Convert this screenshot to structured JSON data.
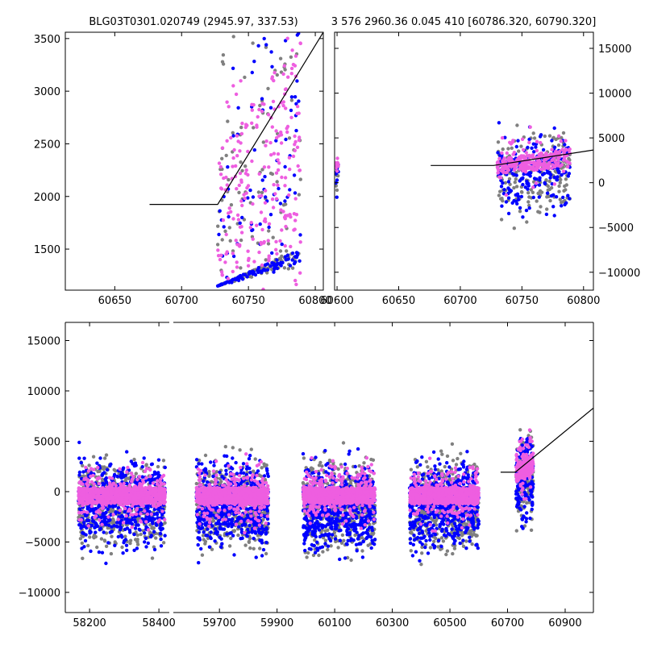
{
  "colors": {
    "background": "#ffffff",
    "grey_points": "#808080",
    "blue_points": "#0000ff",
    "pink_points": "#ee5ee0",
    "model_line": "#000000"
  },
  "chart_data": [
    {
      "id": "top-left",
      "type": "scatter",
      "title": "BLG03T0301.020749 (2945.97, 337.53)",
      "xlim": [
        60613,
        60806
      ],
      "ylim": [
        1110,
        3560
      ],
      "xticks": [
        60650,
        60700,
        60750,
        60800
      ],
      "xtick_labels": [
        "60650",
        "60700",
        "60750",
        "60800"
      ],
      "yticks": [
        1500,
        2000,
        2500,
        3000,
        3500
      ],
      "ytick_labels": [
        "1500",
        "2000",
        "2500",
        "3000",
        "3500"
      ],
      "yaxis_side": "left",
      "data_range_x": [
        60727,
        60789
      ],
      "model_line": {
        "x": [
          60676,
          60727,
          60806
        ],
        "y": [
          1925,
          1925,
          3560
        ]
      },
      "clusters": [
        {
          "x0": 60727,
          "x1": 60789,
          "yfloor": 1150,
          "ymin_start": 1150,
          "ymax_start": 2400,
          "ymin_end": 1500,
          "ymax_end": 3550
        }
      ]
    },
    {
      "id": "top-right",
      "type": "scatter",
      "title": "3 576 2960.36 0.045 410 [60786.320, 60790.320]",
      "xlim": [
        60598,
        60808
      ],
      "ylim": [
        -12000,
        16800
      ],
      "xticks": [
        60600,
        60650,
        60700,
        60750,
        60800
      ],
      "xtick_labels": [
        "60600",
        "60650",
        "60700",
        "60750",
        "60800"
      ],
      "yticks": [
        -10000,
        -5000,
        0,
        5000,
        10000,
        15000
      ],
      "ytick_labels": [
        "−10000",
        "−5000",
        "0",
        "5000",
        "10000",
        "15000"
      ],
      "yaxis_side": "right",
      "model_line": {
        "x": [
          60676,
          60727,
          60808
        ],
        "y": [
          1925,
          1925,
          3650
        ]
      },
      "clusters": [
        {
          "x0": 60599,
          "x1": 60601,
          "yfloor": -6000,
          "ymin_start": 1200,
          "ymax_start": 2400,
          "ymin_end": 1200,
          "ymax_end": 2400
        },
        {
          "x0": 60730,
          "x1": 60789,
          "yfloor": -11000,
          "ymin_start": 1000,
          "ymax_start": 2600,
          "ymin_end": 1800,
          "ymax_end": 3800
        }
      ]
    },
    {
      "id": "bottom",
      "type": "scatter",
      "title": "",
      "broken_axis": true,
      "ylim": [
        -12000,
        16800
      ],
      "yticks": [
        -10000,
        -5000,
        0,
        5000,
        10000,
        15000
      ],
      "ytick_labels": [
        "−10000",
        "−5000",
        "0",
        "5000",
        "10000",
        "15000"
      ],
      "yaxis_side": "left",
      "segments": [
        {
          "xlim": [
            58130,
            58430
          ],
          "xticks": [
            58200,
            58400
          ],
          "xtick_labels": [
            "58200",
            "58400"
          ],
          "clusters": [
            {
              "x0": 58168,
              "x1": 58418,
              "yfloor": -11500,
              "ymin_start": -1200,
              "ymax_start": 400,
              "ymin_end": -1200,
              "ymax_end": 400
            }
          ]
        },
        {
          "xlim": [
            59540,
            60998
          ],
          "xticks": [
            59700,
            59900,
            60100,
            60300,
            60500,
            60700,
            60900
          ],
          "xtick_labels": [
            "59700",
            "59900",
            "60100",
            "60300",
            "60500",
            "60700",
            "60900"
          ],
          "model_line": {
            "x": [
              60676,
              60727,
              60998
            ],
            "y": [
              1925,
              1925,
              8300
            ]
          },
          "clusters": [
            {
              "x0": 59620,
              "x1": 59870,
              "yfloor": -11500,
              "ymin_start": -1200,
              "ymax_start": 400,
              "ymin_end": -1200,
              "ymax_end": 400
            },
            {
              "x0": 59990,
              "x1": 60240,
              "yfloor": -11500,
              "ymin_start": -1200,
              "ymax_start": 400,
              "ymin_end": -1200,
              "ymax_end": 400
            },
            {
              "x0": 60360,
              "x1": 60600,
              "yfloor": -11500,
              "ymin_start": -1200,
              "ymax_start": 400,
              "ymin_end": -1200,
              "ymax_end": 400
            },
            {
              "x0": 60730,
              "x1": 60789,
              "yfloor": -9000,
              "ymin_start": 1000,
              "ymax_start": 2600,
              "ymin_end": 1800,
              "ymax_end": 3800
            }
          ]
        }
      ]
    }
  ]
}
